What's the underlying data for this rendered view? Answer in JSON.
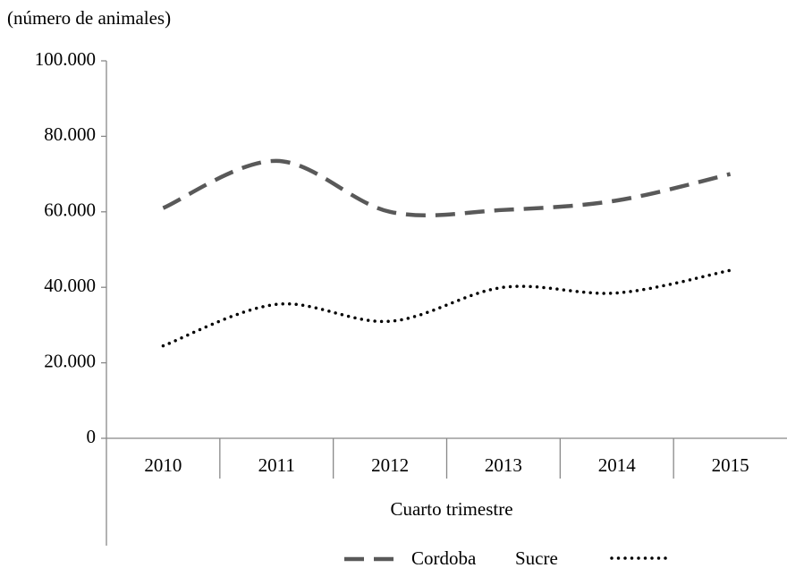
{
  "chart_data": {
    "type": "line",
    "y_axis_label": "(número de animales)",
    "x_axis_label": "Cuarto trimestre",
    "categories": [
      "2010",
      "2011",
      "2012",
      "2013",
      "2014",
      "2015"
    ],
    "series": [
      {
        "name": "Cordoba",
        "color": "#595959",
        "style": "dashed",
        "values": [
          61000,
          73500,
          60000,
          60500,
          63000,
          70000
        ]
      },
      {
        "name": "Sucre",
        "color": "#000000",
        "style": "dotted",
        "values": [
          24500,
          35500,
          31000,
          40000,
          38500,
          44500
        ]
      }
    ],
    "ylim": [
      0,
      100000
    ],
    "yticks": [
      0,
      {
        "value": 20000,
        "label": "20.000"
      },
      {
        "value": 40000,
        "label": "40.000"
      },
      {
        "value": 60000,
        "label": "60.000"
      },
      {
        "value": 80000,
        "label": "80.000"
      },
      {
        "value": 100000,
        "label": "100.000"
      }
    ],
    "grid": false
  }
}
